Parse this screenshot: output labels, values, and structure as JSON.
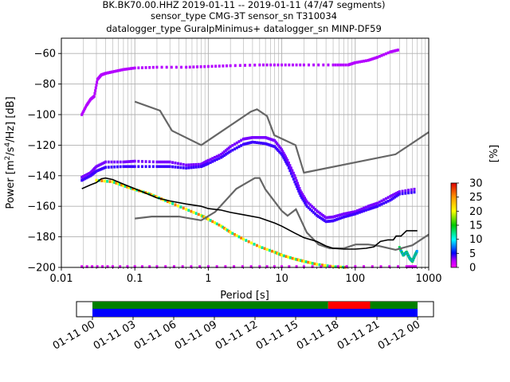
{
  "chart_data": {
    "type": "heatmap",
    "title_lines": [
      "BK.BK70.00.HHZ   2019-01-11 -- 2019-01-11  (47/47 segments)",
      "sensor_type CMG-3T sensor_sn T310034",
      "datalogger_type GuralpMinimus+ datalogger_sn MINP-DF59"
    ],
    "xlabel": "Period [s]",
    "ylabel_prefix": "Power [m",
    "ylabel_unit_sup1": "2",
    "ylabel_mid": "/s",
    "ylabel_unit_sup2": "4",
    "ylabel_suffix": "/Hz] [dB]",
    "x_scale": "log",
    "xlim": [
      0.01,
      1000
    ],
    "ylim": [
      -200,
      -50
    ],
    "x_ticks": [
      {
        "value": 0.01,
        "label": "0.01"
      },
      {
        "value": 0.1,
        "label": "0.1"
      },
      {
        "value": 1,
        "label": "1"
      },
      {
        "value": 10,
        "label": "10"
      },
      {
        "value": 100,
        "label": "100"
      },
      {
        "value": 1000,
        "label": "1000"
      }
    ],
    "y_ticks": [
      {
        "value": -60,
        "label": "−60"
      },
      {
        "value": -80,
        "label": "−80"
      },
      {
        "value": -100,
        "label": "−100"
      },
      {
        "value": -120,
        "label": "−120"
      },
      {
        "value": -140,
        "label": "−140"
      },
      {
        "value": -160,
        "label": "−160"
      },
      {
        "value": -180,
        "label": "−180"
      },
      {
        "value": -200,
        "label": "−200"
      }
    ],
    "grid": true,
    "colorbar": {
      "label": "[%]",
      "range": [
        0,
        30
      ],
      "ticks": [
        {
          "value": 0,
          "label": "0"
        },
        {
          "value": 5,
          "label": "5"
        },
        {
          "value": 10,
          "label": "10"
        },
        {
          "value": 15,
          "label": "15"
        },
        {
          "value": 20,
          "label": "20"
        },
        {
          "value": 25,
          "label": "25"
        },
        {
          "value": 30,
          "label": "30"
        }
      ]
    },
    "noise_models": [
      {
        "points": [
          [
            0.1,
            -91.5
          ],
          [
            0.22,
            -97.4
          ],
          [
            0.32,
            -110.5
          ],
          [
            0.8,
            -120
          ],
          [
            3.8,
            -98
          ],
          [
            4.6,
            -96.5
          ],
          [
            6.3,
            -101
          ],
          [
            7.9,
            -113.5
          ],
          [
            15.4,
            -120
          ],
          [
            20,
            -138
          ],
          [
            354,
            -126
          ],
          [
            1000,
            -111.5
          ]
        ]
      },
      {
        "points": [
          [
            0.1,
            -168
          ],
          [
            0.17,
            -166.7
          ],
          [
            0.4,
            -166.7
          ],
          [
            0.8,
            -169.2
          ],
          [
            1.24,
            -163.7
          ],
          [
            2.4,
            -148.6
          ],
          [
            4.3,
            -141.5
          ],
          [
            5.0,
            -141.5
          ],
          [
            6.0,
            -149
          ],
          [
            10,
            -163
          ],
          [
            12,
            -166.2
          ],
          [
            15.6,
            -162
          ],
          [
            21.9,
            -177.2
          ],
          [
            31.6,
            -185
          ],
          [
            45,
            -187.5
          ],
          [
            70,
            -187.5
          ],
          [
            101,
            -185
          ],
          [
            150,
            -185
          ],
          [
            210,
            -186
          ],
          [
            354,
            -188.5
          ],
          [
            600,
            -185.5
          ],
          [
            1000,
            -178.5
          ]
        ]
      }
    ],
    "mode_line": [
      [
        0.019,
        -148.5
      ],
      [
        0.025,
        -146
      ],
      [
        0.03,
        -144.5
      ],
      [
        0.035,
        -142
      ],
      [
        0.04,
        -141.5
      ],
      [
        0.05,
        -142.5
      ],
      [
        0.07,
        -145.5
      ],
      [
        0.1,
        -148.5
      ],
      [
        0.15,
        -152
      ],
      [
        0.2,
        -154.5
      ],
      [
        0.3,
        -156.5
      ],
      [
        0.5,
        -158.5
      ],
      [
        0.8,
        -160
      ],
      [
        1,
        -161.5
      ],
      [
        1.5,
        -162.5
      ],
      [
        2,
        -164
      ],
      [
        3,
        -165.5
      ],
      [
        5,
        -167.5
      ],
      [
        8,
        -171
      ],
      [
        10,
        -173
      ],
      [
        15,
        -177.5
      ],
      [
        20,
        -180.5
      ],
      [
        30,
        -183
      ],
      [
        40,
        -186
      ],
      [
        50,
        -187.5
      ],
      [
        70,
        -188
      ],
      [
        100,
        -188
      ],
      [
        140,
        -187.5
      ],
      [
        180,
        -186.5
      ],
      [
        220,
        -183
      ],
      [
        280,
        -182
      ],
      [
        330,
        -182
      ],
      [
        360,
        -179.5
      ],
      [
        420,
        -179.5
      ],
      [
        500,
        -176
      ],
      [
        700,
        -176
      ]
    ],
    "pdf_traces": [
      {
        "percent": 2,
        "points": [
          [
            0.019,
            -100
          ],
          [
            0.022,
            -94
          ],
          [
            0.025,
            -90
          ],
          [
            0.028,
            -88
          ],
          [
            0.031,
            -77
          ],
          [
            0.035,
            -74
          ],
          [
            0.04,
            -73
          ],
          [
            0.05,
            -72
          ],
          [
            0.07,
            -70.5
          ],
          [
            0.1,
            -69.5
          ],
          [
            0.2,
            -69
          ],
          [
            0.5,
            -69
          ],
          [
            1,
            -68.5
          ],
          [
            2,
            -68
          ],
          [
            5,
            -67.5
          ],
          [
            10,
            -67.5
          ],
          [
            20,
            -67.5
          ],
          [
            50,
            -67.5
          ],
          [
            80,
            -67.5
          ],
          [
            100,
            -66
          ],
          [
            150,
            -64.5
          ],
          [
            200,
            -62.5
          ],
          [
            300,
            -59
          ],
          [
            400,
            -57.5
          ]
        ]
      },
      {
        "percent": 3,
        "points": [
          [
            0.019,
            -141
          ],
          [
            0.025,
            -138
          ],
          [
            0.03,
            -134
          ],
          [
            0.04,
            -131
          ],
          [
            0.07,
            -131
          ],
          [
            0.1,
            -130.5
          ],
          [
            0.2,
            -131
          ],
          [
            0.3,
            -131
          ],
          [
            0.5,
            -133
          ],
          [
            0.8,
            -132.5
          ],
          [
            1,
            -130
          ],
          [
            1.5,
            -126
          ],
          [
            2,
            -121
          ],
          [
            3,
            -116
          ],
          [
            4,
            -115
          ],
          [
            6,
            -115
          ],
          [
            8,
            -117
          ],
          [
            10,
            -123
          ],
          [
            12,
            -130
          ],
          [
            15,
            -140
          ],
          [
            18,
            -150
          ],
          [
            22,
            -157
          ],
          [
            30,
            -163
          ],
          [
            40,
            -167.5
          ],
          [
            50,
            -167
          ],
          [
            70,
            -165
          ],
          [
            100,
            -163.5
          ],
          [
            150,
            -160
          ],
          [
            200,
            -158
          ],
          [
            300,
            -153.5
          ],
          [
            400,
            -150.5
          ],
          [
            700,
            -148.5
          ]
        ]
      },
      {
        "percent": 4,
        "points": [
          [
            0.019,
            -143
          ],
          [
            0.025,
            -140
          ],
          [
            0.03,
            -137
          ],
          [
            0.04,
            -134.5
          ],
          [
            0.07,
            -134
          ],
          [
            0.1,
            -134
          ],
          [
            0.2,
            -134
          ],
          [
            0.3,
            -134
          ],
          [
            0.5,
            -135
          ],
          [
            0.8,
            -134
          ],
          [
            1,
            -132
          ],
          [
            1.5,
            -128
          ],
          [
            2,
            -124
          ],
          [
            3,
            -119.5
          ],
          [
            4,
            -118
          ],
          [
            6,
            -119
          ],
          [
            8,
            -121
          ],
          [
            10,
            -126
          ],
          [
            12,
            -133
          ],
          [
            15,
            -144
          ],
          [
            18,
            -153
          ],
          [
            22,
            -160
          ],
          [
            30,
            -166
          ],
          [
            40,
            -170
          ],
          [
            50,
            -169.5
          ],
          [
            70,
            -167
          ],
          [
            100,
            -165
          ],
          [
            150,
            -162
          ],
          [
            200,
            -160
          ],
          [
            300,
            -156
          ],
          [
            400,
            -152
          ],
          [
            700,
            -150.5
          ]
        ]
      },
      {
        "percent": 16,
        "points": [
          [
            0.03,
            -143
          ],
          [
            0.05,
            -144
          ],
          [
            0.07,
            -146.5
          ],
          [
            0.1,
            -149
          ],
          [
            0.15,
            -151.5
          ],
          [
            0.2,
            -154
          ],
          [
            0.3,
            -157.5
          ],
          [
            0.5,
            -162
          ],
          [
            0.8,
            -166
          ],
          [
            1,
            -168.5
          ],
          [
            1.5,
            -173
          ],
          [
            2,
            -177
          ],
          [
            3,
            -181.5
          ],
          [
            5,
            -186.5
          ],
          [
            8,
            -190
          ],
          [
            10,
            -192
          ],
          [
            15,
            -194.5
          ],
          [
            20,
            -196
          ],
          [
            30,
            -198
          ],
          [
            50,
            -199.5
          ],
          [
            80,
            -200
          ]
        ]
      },
      {
        "percent": 6,
        "points": [
          [
            400,
            -187
          ],
          [
            450,
            -192
          ],
          [
            500,
            -190
          ],
          [
            550,
            -194
          ],
          [
            600,
            -196
          ],
          [
            650,
            -192
          ],
          [
            700,
            -189
          ]
        ]
      },
      {
        "percent": 1,
        "points": [
          [
            0.019,
            -199.5
          ],
          [
            0.05,
            -199.5
          ],
          [
            0.2,
            -199.5
          ],
          [
            1,
            -199.5
          ],
          [
            5,
            -199.5
          ],
          [
            20,
            -199.5
          ],
          [
            100,
            -199.5
          ],
          [
            500,
            -199.5
          ],
          [
            700,
            -199.5
          ]
        ]
      }
    ],
    "data_availability": {
      "start_label": "01-11 00",
      "end_label": "01-12 00",
      "labels": [
        "01-11 00",
        "01-11 03",
        "01-11 06",
        "01-11 09",
        "01-11 12",
        "01-11 15",
        "01-11 18",
        "01-11 21",
        "01-12 00"
      ],
      "segments_used": [
        [
          0,
          17.4,
          "#007f00"
        ],
        [
          17.4,
          20.5,
          "#ff0000"
        ],
        [
          20.5,
          24,
          "#007f00"
        ]
      ],
      "segments_data": [
        [
          0,
          24,
          "#0000ff"
        ]
      ]
    }
  }
}
